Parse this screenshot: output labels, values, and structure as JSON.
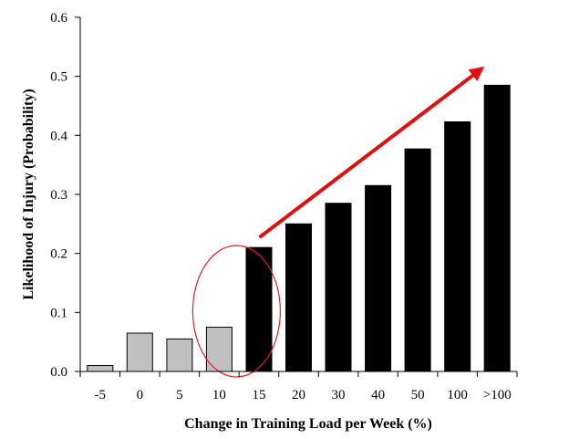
{
  "chart_data": {
    "type": "bar",
    "title": "",
    "xlabel": "Change in Training Load per Week (%)",
    "ylabel": "Likelihood of Injury (Probability)",
    "categories": [
      "-5",
      "0",
      "5",
      "10",
      "15",
      "20",
      "30",
      "40",
      "50",
      "100",
      ">100"
    ],
    "values": [
      0.01,
      0.065,
      0.055,
      0.075,
      0.21,
      0.25,
      0.285,
      0.315,
      0.377,
      0.423,
      0.485
    ],
    "ylim": [
      0,
      0.6
    ],
    "yticks": [
      0.0,
      0.1,
      0.2,
      0.3,
      0.4,
      0.5,
      0.6
    ],
    "ytick_labels": [
      "0.0",
      "0.1",
      "0.2",
      "0.3",
      "0.4",
      "0.5",
      "0.6"
    ],
    "grid": false,
    "bar_colors": [
      "#c0c0c0",
      "#c0c0c0",
      "#c0c0c0",
      "#c0c0c0",
      "#000000",
      "#000000",
      "#000000",
      "#000000",
      "#000000",
      "#000000",
      "#000000"
    ],
    "annotations": [
      {
        "type": "ellipse",
        "around_category": "10",
        "color": "#e02020"
      },
      {
        "type": "arrow",
        "from_category": "15",
        "to_category": ">100",
        "color": "#e01010"
      }
    ]
  }
}
